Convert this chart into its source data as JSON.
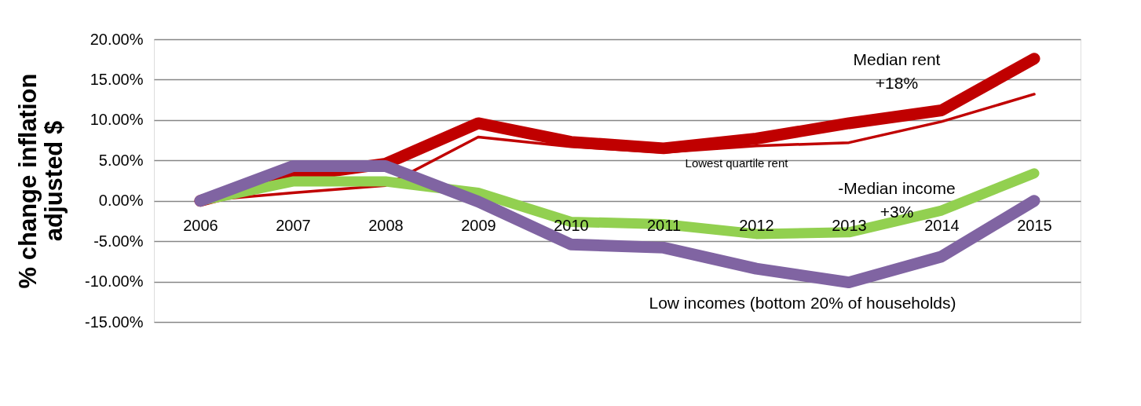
{
  "chart_data": {
    "type": "line",
    "ylabel": "% change inflation adjusted $",
    "categories": [
      "2006",
      "2007",
      "2008",
      "2009",
      "2010",
      "2011",
      "2012",
      "2013",
      "2014",
      "2015"
    ],
    "series": [
      {
        "color": "#c00000",
        "values": [
          0,
          3.0,
          4.6,
          9.6,
          7.3,
          6.5,
          7.7,
          9.6,
          11.2,
          17.6
        ]
      },
      {
        "color": "#c00000",
        "values": [
          0,
          1.0,
          1.9,
          7.9,
          6.7,
          6.0,
          6.8,
          7.2,
          9.8,
          13.2
        ]
      },
      {
        "color": "#92d050",
        "values": [
          0,
          2.4,
          2.4,
          1.0,
          -2.6,
          -2.9,
          -4.1,
          -3.9,
          -1.2,
          3.4
        ]
      },
      {
        "color": "#8064a2",
        "values": [
          0,
          4.3,
          4.3,
          -0.1,
          -5.4,
          -5.8,
          -8.4,
          -10.1,
          -6.9,
          0
        ]
      }
    ],
    "ylim": [
      -15,
      20
    ],
    "yticks": [
      {
        "value": -15,
        "label": "-15.00%"
      },
      {
        "value": -10,
        "label": "-10.00%"
      },
      {
        "value": -5,
        "label": "-5.00%"
      },
      {
        "value": 0,
        "label": "0.00%"
      },
      {
        "value": 5,
        "label": "5.00%"
      },
      {
        "value": 10,
        "label": "10.00%"
      },
      {
        "value": 15,
        "label": "15.00%"
      },
      {
        "value": 20,
        "label": "20.00%"
      }
    ],
    "grid": "y",
    "legend": false,
    "marker": "none",
    "line_style": "solid",
    "annotations": [
      "Median rent\n+18%",
      "Lowest quartile rent",
      "-Median income\n+3%",
      "Low incomes (bottom 20% of households)"
    ]
  }
}
